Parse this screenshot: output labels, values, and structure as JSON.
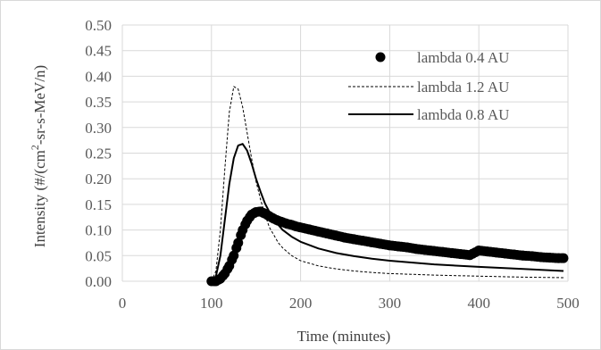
{
  "chart_data": {
    "type": "scatter",
    "title": "",
    "xlabel": "Time (minutes)",
    "ylabel_parts": [
      "Intensity (#/(cm",
      "2",
      "-sr-s-MeV/n)"
    ],
    "xlim": [
      0,
      500
    ],
    "ylim": [
      0,
      0.5
    ],
    "x_ticks": [
      0,
      100,
      200,
      300,
      400,
      500
    ],
    "y_ticks": [
      "0.00",
      "0.05",
      "0.10",
      "0.15",
      "0.20",
      "0.25",
      "0.30",
      "0.35",
      "0.40",
      "0.45",
      "0.50"
    ],
    "grid": true,
    "legend_position": "top-right",
    "series": [
      {
        "name": "lambda 0.4 AU",
        "style": "markers",
        "color": "#000000",
        "x": [
          100,
          105,
          110,
          115,
          120,
          125,
          130,
          135,
          140,
          145,
          150,
          155,
          160,
          165,
          170,
          175,
          180,
          185,
          190,
          195,
          200,
          210,
          220,
          230,
          240,
          250,
          260,
          270,
          280,
          290,
          300,
          310,
          320,
          330,
          340,
          350,
          360,
          370,
          380,
          390,
          400,
          410,
          420,
          430,
          440,
          450,
          460,
          470,
          480,
          490,
          495
        ],
        "y": [
          0.0,
          0.0,
          0.005,
          0.015,
          0.03,
          0.05,
          0.075,
          0.1,
          0.118,
          0.13,
          0.135,
          0.136,
          0.132,
          0.127,
          0.122,
          0.118,
          0.115,
          0.112,
          0.11,
          0.107,
          0.105,
          0.101,
          0.097,
          0.093,
          0.089,
          0.085,
          0.082,
          0.079,
          0.076,
          0.073,
          0.07,
          0.068,
          0.066,
          0.063,
          0.061,
          0.059,
          0.057,
          0.055,
          0.053,
          0.051,
          0.06,
          0.058,
          0.056,
          0.054,
          0.052,
          0.05,
          0.049,
          0.047,
          0.046,
          0.045,
          0.045
        ]
      },
      {
        "name": "lambda 1.2 AU",
        "style": "dashed",
        "color": "#000000",
        "x": [
          100,
          105,
          110,
          115,
          120,
          125,
          130,
          135,
          140,
          145,
          150,
          155,
          160,
          165,
          170,
          175,
          180,
          190,
          200,
          220,
          240,
          260,
          280,
          300,
          350,
          400,
          450,
          495
        ],
        "y": [
          0.0,
          0.02,
          0.1,
          0.22,
          0.33,
          0.38,
          0.375,
          0.34,
          0.29,
          0.24,
          0.195,
          0.16,
          0.13,
          0.105,
          0.09,
          0.075,
          0.065,
          0.05,
          0.04,
          0.03,
          0.024,
          0.02,
          0.017,
          0.015,
          0.012,
          0.01,
          0.008,
          0.007
        ]
      },
      {
        "name": "lambda 0.8 AU",
        "style": "solid",
        "color": "#000000",
        "x": [
          100,
          105,
          110,
          115,
          120,
          125,
          130,
          135,
          140,
          145,
          150,
          155,
          160,
          165,
          170,
          175,
          180,
          190,
          200,
          220,
          240,
          260,
          280,
          300,
          350,
          400,
          450,
          495
        ],
        "y": [
          0.0,
          0.01,
          0.05,
          0.12,
          0.19,
          0.24,
          0.265,
          0.268,
          0.255,
          0.23,
          0.2,
          0.175,
          0.152,
          0.135,
          0.12,
          0.11,
          0.1,
          0.087,
          0.077,
          0.064,
          0.055,
          0.049,
          0.044,
          0.04,
          0.033,
          0.028,
          0.024,
          0.02
        ]
      }
    ]
  }
}
